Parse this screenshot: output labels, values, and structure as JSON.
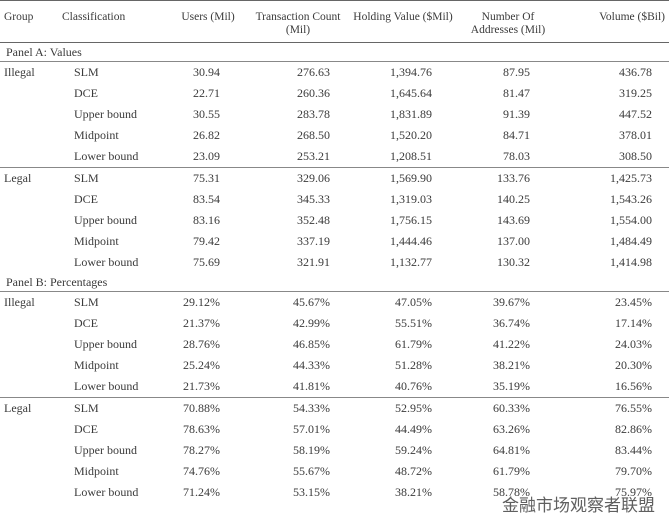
{
  "header": [
    "Group",
    "Classification",
    "Users (Mil)",
    "Transaction Count (Mil)",
    "Holding Value ($Mil)",
    "Number Of Addresses (Mil)",
    "Volume ($Bil)"
  ],
  "panels": [
    {
      "title": "Panel A: Values",
      "groups": [
        {
          "name": "Illegal",
          "rows": [
            [
              "SLM",
              "30.94",
              "276.63",
              "1,394.76",
              "87.95",
              "436.78"
            ],
            [
              "DCE",
              "22.71",
              "260.36",
              "1,645.64",
              "81.47",
              "319.25"
            ],
            [
              "Upper bound",
              "30.55",
              "283.78",
              "1,831.89",
              "91.39",
              "447.52"
            ],
            [
              "Midpoint",
              "26.82",
              "268.50",
              "1,520.20",
              "84.71",
              "378.01"
            ],
            [
              "Lower bound",
              "23.09",
              "253.21",
              "1,208.51",
              "78.03",
              "308.50"
            ]
          ]
        },
        {
          "name": "Legal",
          "rows": [
            [
              "SLM",
              "75.31",
              "329.06",
              "1,569.90",
              "133.76",
              "1,425.73"
            ],
            [
              "DCE",
              "83.54",
              "345.33",
              "1,319.03",
              "140.25",
              "1,543.26"
            ],
            [
              "Upper bound",
              "83.16",
              "352.48",
              "1,756.15",
              "143.69",
              "1,554.00"
            ],
            [
              "Midpoint",
              "79.42",
              "337.19",
              "1,444.46",
              "137.00",
              "1,484.49"
            ],
            [
              "Lower bound",
              "75.69",
              "321.91",
              "1,132.77",
              "130.32",
              "1,414.98"
            ]
          ]
        }
      ]
    },
    {
      "title": "Panel B: Percentages",
      "groups": [
        {
          "name": "Illegal",
          "rows": [
            [
              "SLM",
              "29.12%",
              "45.67%",
              "47.05%",
              "39.67%",
              "23.45%"
            ],
            [
              "DCE",
              "21.37%",
              "42.99%",
              "55.51%",
              "36.74%",
              "17.14%"
            ],
            [
              "Upper bound",
              "28.76%",
              "46.85%",
              "61.79%",
              "41.22%",
              "24.03%"
            ],
            [
              "Midpoint",
              "25.24%",
              "44.33%",
              "51.28%",
              "38.21%",
              "20.30%"
            ],
            [
              "Lower bound",
              "21.73%",
              "41.81%",
              "40.76%",
              "35.19%",
              "16.56%"
            ]
          ]
        },
        {
          "name": "Legal",
          "rows": [
            [
              "SLM",
              "70.88%",
              "54.33%",
              "52.95%",
              "60.33%",
              "76.55%"
            ],
            [
              "DCE",
              "78.63%",
              "57.01%",
              "44.49%",
              "63.26%",
              "82.86%"
            ],
            [
              "Upper bound",
              "78.27%",
              "58.19%",
              "59.24%",
              "64.81%",
              "83.44%"
            ],
            [
              "Midpoint",
              "74.76%",
              "55.67%",
              "48.72%",
              "61.79%",
              "79.70%"
            ],
            [
              "Lower bound",
              "71.24%",
              "53.15%",
              "38.21%",
              "58.78%",
              "75.97%"
            ]
          ]
        }
      ]
    }
  ],
  "watermark": "金融市场观察者联盟"
}
